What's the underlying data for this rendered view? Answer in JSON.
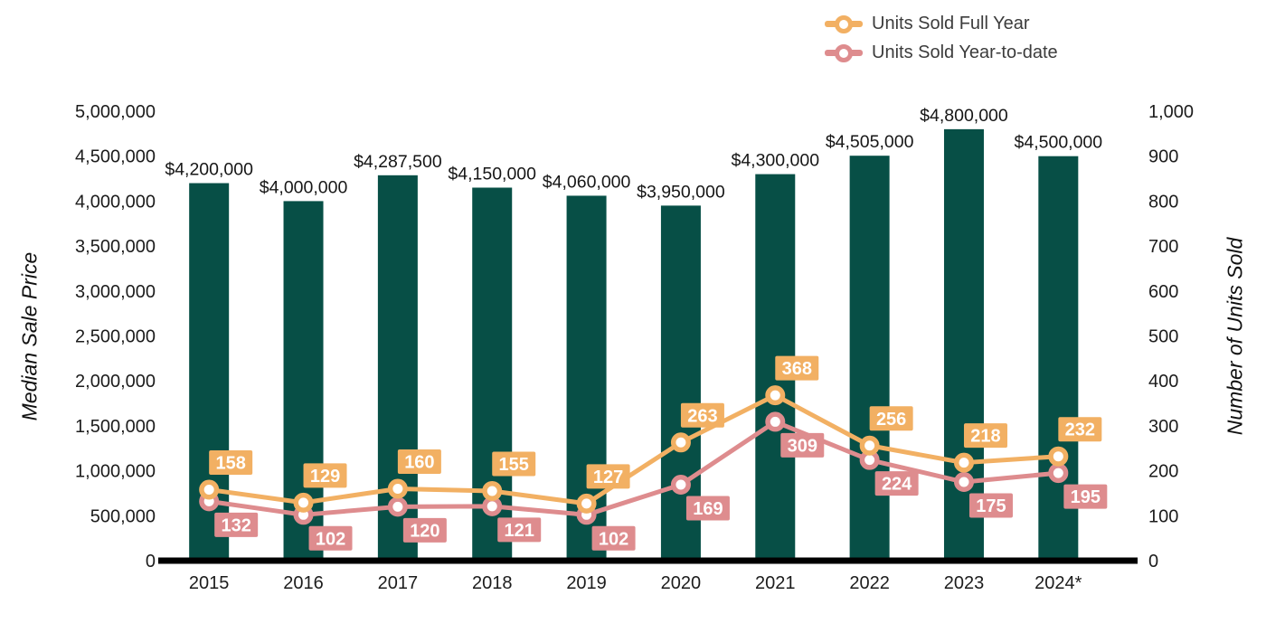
{
  "legend": {
    "items": [
      {
        "label": "Units Sold Full Year",
        "color": "#F2B063"
      },
      {
        "label": "Units Sold Year-to-date",
        "color": "#DE8C8E"
      }
    ]
  },
  "chart_data": {
    "type": "combo (bar + line)",
    "title": "",
    "categories": [
      "2015",
      "2016",
      "2017",
      "2018",
      "2019",
      "2020",
      "2021",
      "2022",
      "2023",
      "2024*"
    ],
    "bar_series": {
      "name": "Median Sale Price",
      "axis": "left",
      "color": "#074F46",
      "values": [
        4200000,
        4000000,
        4287500,
        4150000,
        4060000,
        3950000,
        4300000,
        4505000,
        4800000,
        4500000
      ],
      "labels": [
        "$4,200,000",
        "$4,000,000",
        "$4,287,500",
        "$4,150,000",
        "$4,060,000",
        "$3,950,000",
        "$4,300,000",
        "$4,505,000",
        "$4,800,000",
        "$4,500,000"
      ]
    },
    "line_series": [
      {
        "name": "Units Sold Full Year",
        "axis": "right",
        "color": "#F2B063",
        "label_text_color": "#FFFFFF",
        "values": [
          158,
          129,
          160,
          155,
          127,
          263,
          368,
          256,
          218,
          232
        ]
      },
      {
        "name": "Units Sold Year-to-date",
        "axis": "right",
        "color": "#DE8C8E",
        "label_text_color": "#FFFFFF",
        "values": [
          132,
          102,
          120,
          121,
          102,
          169,
          309,
          224,
          175,
          195
        ]
      }
    ],
    "left_axis": {
      "label": "Median Sale Price",
      "min": 0,
      "max": 5000000,
      "tick_step": 500000,
      "tick_labels": [
        "0",
        "500,000",
        "1,000,000",
        "1,500,000",
        "2,000,000",
        "2,500,000",
        "3,000,000",
        "3,500,000",
        "4,000,000",
        "4,500,000",
        "5,000,000"
      ]
    },
    "right_axis": {
      "label": "Number of Units Sold",
      "min": 0,
      "max": 1000,
      "tick_step": 100,
      "tick_labels": [
        "0",
        "100",
        "200",
        "300",
        "400",
        "500",
        "600",
        "700",
        "800",
        "900",
        "1,000"
      ]
    },
    "x_axis": {
      "labels": [
        "2015",
        "2016",
        "2017",
        "2018",
        "2019",
        "2020",
        "2021",
        "2022",
        "2023",
        "2024*"
      ]
    },
    "grid": false,
    "legend_position": "top-right",
    "axis_line_color": "#000000",
    "tick_text_color": "#1c1c1c",
    "bar_label_color": "#161616"
  }
}
